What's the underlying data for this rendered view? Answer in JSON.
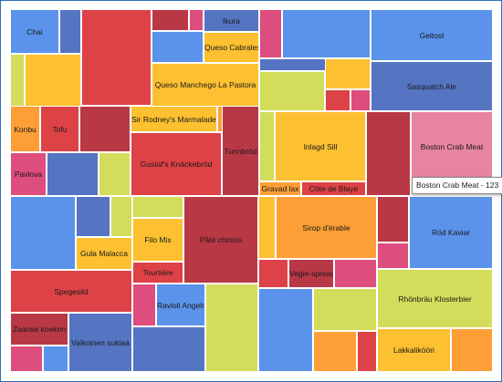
{
  "chart_data": {
    "type": "treemap",
    "palette": {
      "blue": "#5b93ea",
      "darkblue": "#5574c2",
      "red": "#dd4246",
      "darkred": "#b93845",
      "yellow": "#fcc031",
      "orange": "#fd9f36",
      "lime": "#d3dd5b",
      "pink": "#dd4d7d",
      "lightpink": "#e684a1"
    },
    "tiles": [
      {
        "label": "Chai",
        "color": "blue"
      },
      {
        "label": "",
        "color": "darkblue"
      },
      {
        "label": "",
        "color": "red"
      },
      {
        "label": "",
        "color": "darkred"
      },
      {
        "label": "",
        "color": "pink"
      },
      {
        "label": "Ikura",
        "color": "darkblue"
      },
      {
        "label": "",
        "color": "blue"
      },
      {
        "label": "Queso Cabrales",
        "color": "yellow"
      },
      {
        "label": "",
        "color": "lime"
      },
      {
        "label": "",
        "color": "yellow"
      },
      {
        "label": "",
        "color": "darkblue"
      },
      {
        "label": "Queso Manchego La Pastora",
        "color": "yellow"
      },
      {
        "label": "",
        "color": "pink"
      },
      {
        "label": "",
        "color": "blue"
      },
      {
        "label": "Geitost",
        "color": "blue"
      },
      {
        "label": "",
        "color": "darkblue"
      },
      {
        "label": "",
        "color": "lime"
      },
      {
        "label": "",
        "color": "yellow"
      },
      {
        "label": "Sasquatch Ale",
        "color": "darkblue"
      },
      {
        "label": "",
        "color": "red"
      },
      {
        "label": "",
        "color": "pink"
      },
      {
        "label": "Konbu",
        "color": "orange"
      },
      {
        "label": "Tofu",
        "color": "red"
      },
      {
        "label": "",
        "color": "darkred"
      },
      {
        "label": "Sir Rodney's Marmalade",
        "color": "yellow"
      },
      {
        "label": "",
        "color": "orange"
      },
      {
        "label": "Gustaf's Knäckebröd",
        "color": "red"
      },
      {
        "label": "Tunnbröd",
        "color": "darkred"
      },
      {
        "label": "Pavlova",
        "color": "pink"
      },
      {
        "label": "",
        "color": "darkblue"
      },
      {
        "label": "",
        "color": "lime"
      },
      {
        "label": "",
        "color": "lime"
      },
      {
        "label": "Inlagd Sill",
        "color": "yellow"
      },
      {
        "label": "",
        "color": "darkred"
      },
      {
        "label": "Boston Crab Meat",
        "color": "lightpink"
      },
      {
        "label": "Gravad lax",
        "color": "orange"
      },
      {
        "label": "Côte de Blaye",
        "color": "red"
      },
      {
        "label": "",
        "color": "blue"
      },
      {
        "label": "",
        "color": "darkblue"
      },
      {
        "label": "",
        "color": "lime"
      },
      {
        "label": "Gula Malacca",
        "color": "yellow"
      },
      {
        "label": "",
        "color": "blue"
      },
      {
        "label": "",
        "color": "lime"
      },
      {
        "label": "Filo Mix",
        "color": "yellow"
      },
      {
        "label": "Pâté chinois",
        "color": "darkred"
      },
      {
        "label": "Tourtière",
        "color": "red"
      },
      {
        "label": "",
        "color": "yellow"
      },
      {
        "label": "Sirop d'érable",
        "color": "orange"
      },
      {
        "label": "",
        "color": "darkred"
      },
      {
        "label": "Röd Kaviar",
        "color": "blue"
      },
      {
        "label": "",
        "color": "pink"
      },
      {
        "label": "",
        "color": "red"
      },
      {
        "label": "Vegie-spread",
        "color": "darkred"
      },
      {
        "label": "",
        "color": "pink"
      },
      {
        "label": "Spegesild",
        "color": "red"
      },
      {
        "label": "",
        "color": "pink"
      },
      {
        "label": "Ravioli Angelo",
        "color": "blue"
      },
      {
        "label": "",
        "color": "lime"
      },
      {
        "label": "",
        "color": "blue"
      },
      {
        "label": "",
        "color": "lime"
      },
      {
        "label": "Rhönbräu Klosterbier",
        "color": "lime"
      },
      {
        "label": "Zaanse koeken",
        "color": "darkred"
      },
      {
        "label": "Valkoinen suklaa",
        "color": "darkblue"
      },
      {
        "label": "",
        "color": "darkblue"
      },
      {
        "label": "",
        "color": "pink"
      },
      {
        "label": "",
        "color": "blue"
      },
      {
        "label": "",
        "color": "orange"
      },
      {
        "label": "",
        "color": "red"
      },
      {
        "label": "Lakkalikööri",
        "color": "yellow"
      },
      {
        "label": "",
        "color": "orange"
      }
    ],
    "tooltip": {
      "text": "Boston Crab Meat - 123"
    }
  }
}
